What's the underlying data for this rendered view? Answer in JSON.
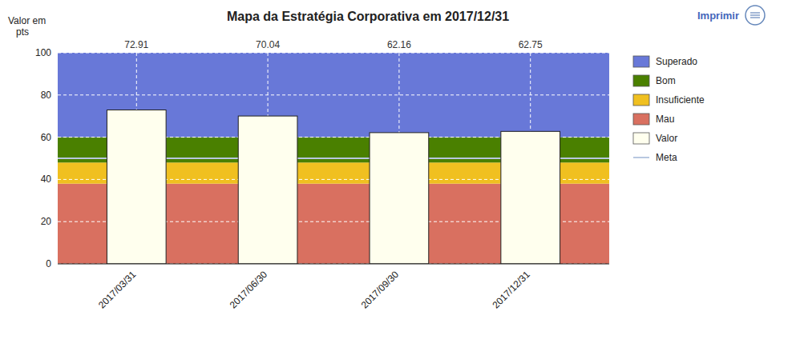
{
  "chart_data": {
    "type": "bar",
    "title": "Mapa da Estratégia Corporativa em 2017/12/31",
    "ylabel": "Valor em\n   pts",
    "categories": [
      "2017/03/31",
      "2017/06/30",
      "2017/09/30",
      "2017/12/31"
    ],
    "series": [
      {
        "name": "Valor",
        "color": "#ffffee",
        "values": [
          72.91,
          70.04,
          62.16,
          62.75
        ]
      }
    ],
    "data_labels": true,
    "ylim": [
      0,
      100
    ],
    "yticks": [
      0,
      20,
      40,
      60,
      80,
      100
    ],
    "grid": true,
    "legend": "right",
    "zones": [
      {
        "name": "Mau",
        "from": 0,
        "to": 38,
        "color": "#d97060"
      },
      {
        "name": "Insuficiente",
        "from": 38,
        "to": 48,
        "color": "#f0c020"
      },
      {
        "name": "Bom",
        "from": 48,
        "to": 60,
        "color": "#4a8000"
      },
      {
        "name": "Superado",
        "from": 60,
        "to": 100,
        "color": "#6878d8"
      }
    ],
    "reference_line": {
      "name": "Meta",
      "value": 50,
      "color": "#b8c8e0"
    },
    "print_button": "Imprimir"
  }
}
